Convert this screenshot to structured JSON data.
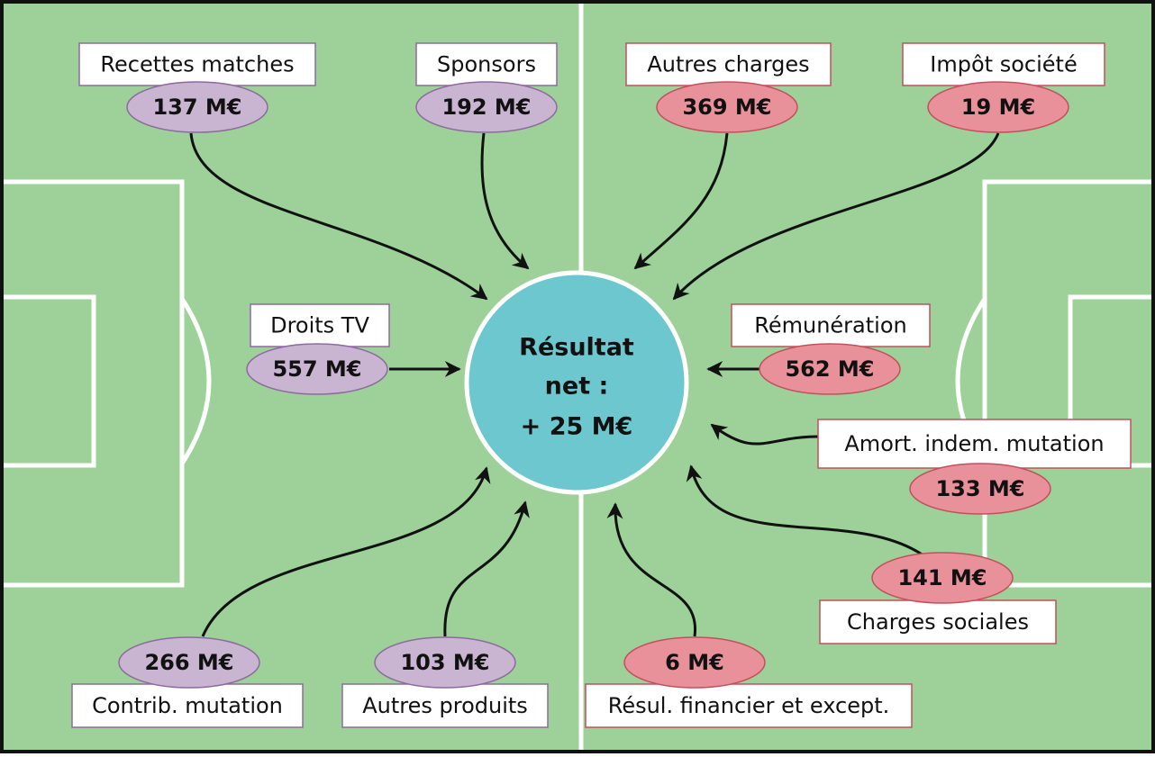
{
  "center": {
    "lines": [
      "Résultat",
      "net :",
      "+ 25 M€"
    ]
  },
  "revenues": [
    {
      "label": "Recettes matches",
      "value": "137 M€"
    },
    {
      "label": "Sponsors",
      "value": "192 M€"
    },
    {
      "label": "Droits TV",
      "value": "557 M€"
    },
    {
      "label": "Contrib. mutation",
      "value": "266 M€"
    },
    {
      "label": "Autres produits",
      "value": "103 M€"
    }
  ],
  "expenses": [
    {
      "label": "Autres charges",
      "value": "369 M€"
    },
    {
      "label": "Impôt société",
      "value": "19 M€"
    },
    {
      "label": "Rémunération",
      "value": "562 M€"
    },
    {
      "label": "Amort. indem. mutation",
      "value": "133 M€"
    },
    {
      "label": "Charges sociales",
      "value": "141 M€"
    },
    {
      "label": "Résul. financier et except.",
      "value": "6 M€"
    }
  ]
}
